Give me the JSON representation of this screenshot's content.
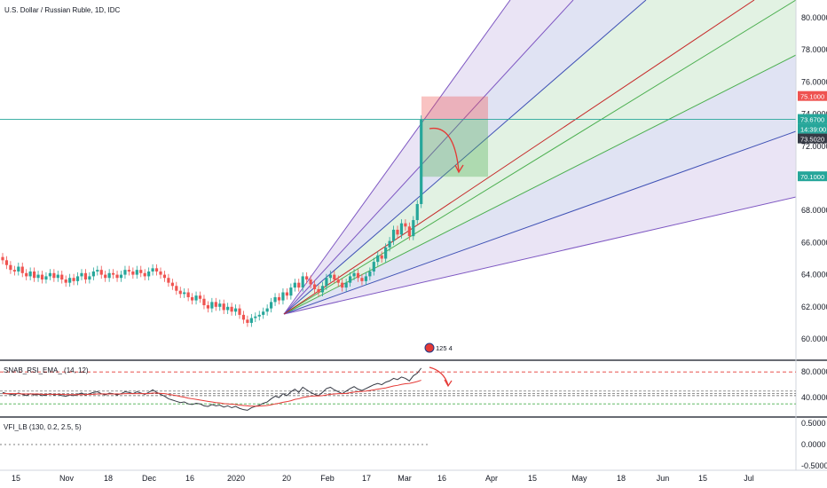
{
  "header": {
    "symbol_title": "U.S. Dollar / Russian Ruble, 1D, IDC"
  },
  "price_axis": {
    "ticks": [
      "80.0000",
      "78.0000",
      "76.0000",
      "74.0000",
      "72.0000",
      "70.0000",
      "68.0000",
      "66.0000",
      "64.0000",
      "62.0000",
      "60.0000"
    ],
    "badges": {
      "target_high": "75.1000",
      "last_price": "73.6700",
      "countdown": "14:39:00",
      "entry": "73.5020",
      "target_low": "70.1000"
    }
  },
  "event_marker": {
    "label": "125 4"
  },
  "indicator1": {
    "title": "SNAB_RSI_EMA_ (14, 12)",
    "ticks": [
      "80.0000",
      "40.0000"
    ]
  },
  "indicator2": {
    "title": "VFI_LB (130, 0.2, 2.5, 5)",
    "ticks": [
      "0.5000",
      "0.0000",
      "-0.5000"
    ]
  },
  "time_axis": {
    "ticks": [
      "15",
      "Nov",
      "18",
      "Dec",
      "16",
      "2020",
      "20",
      "Feb",
      "17",
      "Mar",
      "16",
      "Apr",
      "15",
      "May",
      "18",
      "Jun",
      "15",
      "Jul"
    ]
  },
  "colors": {
    "up": "#26a69a",
    "down": "#ef5350",
    "fan_purple": "#7e57c2",
    "fan_blue": "#3f51b5",
    "fan_green": "#4caf50",
    "fan_red": "#c62828",
    "rsi_line": "#363a45",
    "rsi_ema": "#e53935",
    "arrow": "#e53935"
  },
  "chart_data": [
    {
      "type": "candlestick",
      "title": "U.S. Dollar / Russian Ruble, 1D, IDC",
      "ylim": [
        59.0,
        82.0
      ],
      "x_ticks": [
        "15",
        "Nov",
        "18",
        "Dec",
        "16",
        "2020",
        "20",
        "Feb",
        "17",
        "Mar",
        "16",
        "Apr",
        "15",
        "May",
        "18",
        "Jun",
        "15",
        "Jul"
      ],
      "close": [
        64.9,
        64.6,
        64.3,
        64.2,
        64.5,
        64.1,
        63.9,
        64.2,
        63.8,
        64.0,
        63.7,
        63.9,
        64.1,
        63.8,
        64.0,
        63.7,
        63.5,
        63.8,
        63.6,
        63.9,
        64.1,
        63.7,
        63.9,
        64.2,
        64.3,
        64.0,
        63.8,
        64.1,
        64.0,
        63.8,
        64.0,
        64.3,
        64.2,
        64.0,
        64.3,
        64.1,
        63.9,
        64.2,
        64.4,
        64.2,
        64.0,
        63.8,
        63.5,
        63.3,
        63.0,
        62.8,
        62.9,
        62.6,
        62.4,
        62.7,
        62.5,
        62.1,
        61.9,
        62.3,
        62.0,
        62.2,
        61.8,
        62.0,
        61.7,
        61.9,
        61.5,
        61.2,
        61.0,
        61.3,
        61.4,
        61.5,
        61.7,
        61.9,
        62.3,
        62.6,
        62.4,
        62.9,
        62.7,
        63.2,
        63.5,
        63.2,
        63.9,
        63.7,
        63.4,
        63.1,
        62.9,
        63.3,
        63.8,
        64.0,
        63.7,
        63.5,
        63.2,
        63.5,
        63.9,
        64.1,
        63.8,
        63.6,
        63.9,
        64.2,
        64.8,
        65.2,
        65.0,
        65.7,
        66.1,
        66.8,
        66.5,
        67.2,
        67.0,
        66.4,
        67.4,
        68.4,
        73.67
      ],
      "rsi": [
        48,
        46,
        45,
        44,
        47,
        45,
        43,
        46,
        44,
        45,
        43,
        44,
        46,
        44,
        45,
        43,
        42,
        44,
        43,
        45,
        47,
        44,
        46,
        48,
        49,
        46,
        44,
        47,
        46,
        44,
        46,
        49,
        48,
        46,
        49,
        47,
        45,
        48,
        52,
        48,
        45,
        42,
        38,
        36,
        34,
        32,
        33,
        30,
        29,
        31,
        30,
        27,
        26,
        29,
        27,
        28,
        25,
        27,
        24,
        26,
        23,
        21,
        20,
        24,
        26,
        28,
        31,
        33,
        38,
        42,
        40,
        46,
        43,
        49,
        53,
        48,
        56,
        52,
        48,
        45,
        43,
        48,
        54,
        56,
        52,
        49,
        46,
        50,
        54,
        57,
        53,
        51,
        54,
        57,
        60,
        62,
        60,
        64,
        66,
        70,
        68,
        72,
        70,
        66,
        74,
        78,
        86
      ],
      "rsi_ema": [
        46,
        46,
        46,
        46,
        46,
        45.5,
        45.5,
        45.5,
        45.5,
        45.5,
        45,
        45,
        45,
        45,
        45,
        45,
        44.5,
        44.5,
        44.5,
        44.5,
        44.5,
        44.5,
        45,
        45,
        45.5,
        45.5,
        45.5,
        45.5,
        45.5,
        45.5,
        45.5,
        46,
        46,
        46,
        46,
        46,
        46,
        46,
        47,
        47,
        46.5,
        46,
        45,
        44,
        43,
        41.5,
        40.5,
        39,
        38,
        37,
        36,
        35,
        34,
        33,
        32,
        31.5,
        30.5,
        30,
        29.5,
        29,
        28,
        27.5,
        27,
        26.5,
        26.5,
        26.5,
        27,
        27.5,
        28.5,
        30,
        31,
        32.5,
        33.5,
        35,
        37,
        38,
        40,
        41,
        42,
        42.5,
        42.5,
        43,
        44,
        45,
        45.5,
        46,
        46,
        46.5,
        47.5,
        48.5,
        49,
        49.5,
        50,
        51,
        52,
        53,
        54,
        55,
        56.5,
        58,
        59,
        60.5,
        61.5,
        62,
        63.5,
        65,
        67
      ]
    },
    {
      "type": "line",
      "title": "SNAB_RSI_EMA_ (14, 12)",
      "ylim": [
        20,
        90
      ],
      "levels": [
        80,
        50,
        46,
        43,
        30
      ]
    },
    {
      "type": "line",
      "title": "VFI_LB (130, 0.2, 2.5, 5)",
      "ylim": [
        -0.6,
        0.6
      ],
      "levels": [
        0.0
      ]
    }
  ]
}
